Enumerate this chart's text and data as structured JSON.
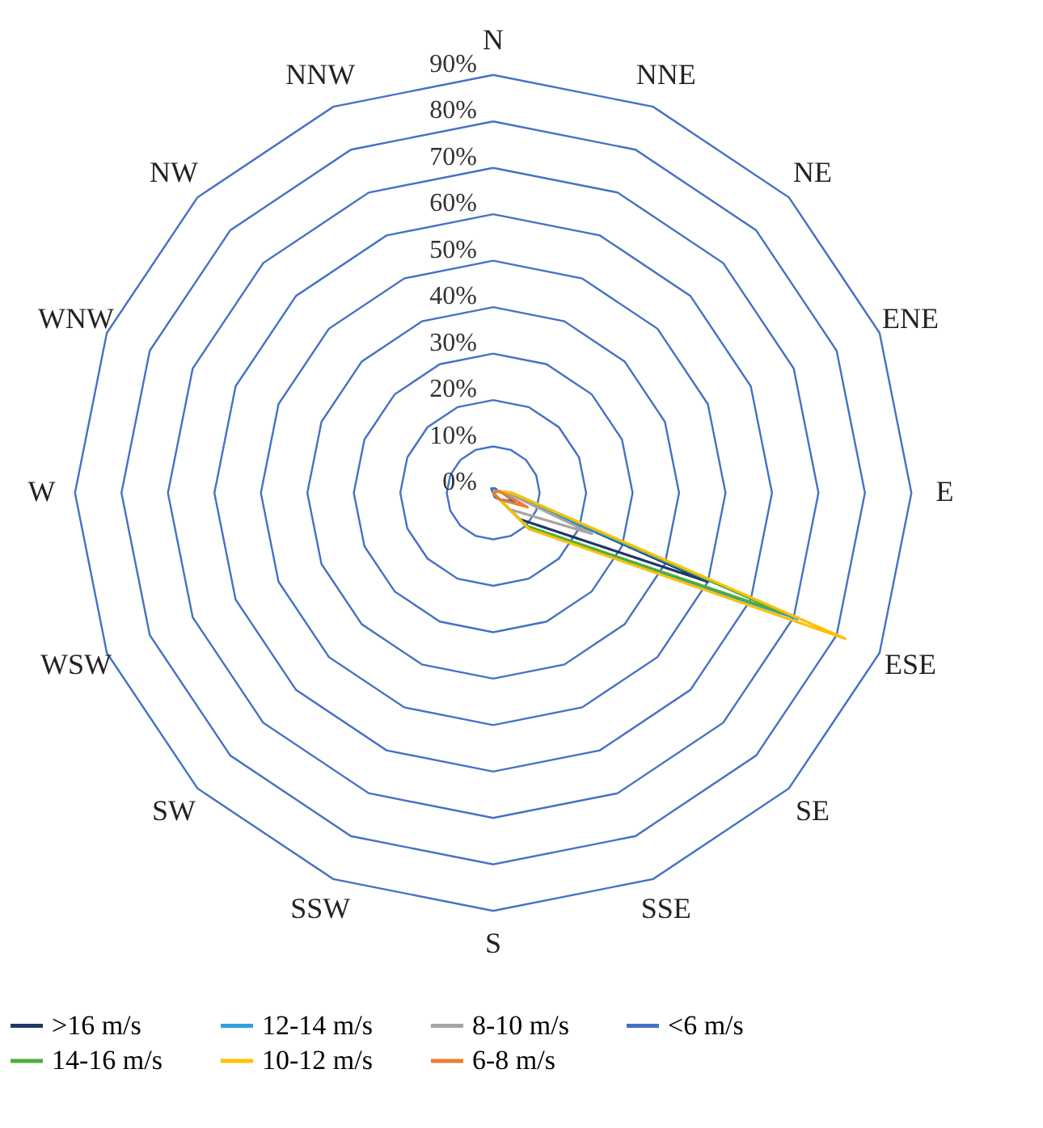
{
  "chart_data": {
    "type": "radar",
    "categories": [
      "N",
      "NNE",
      "NE",
      "ENE",
      "E",
      "ESE",
      "SE",
      "SSE",
      "S",
      "SSW",
      "SW",
      "WSW",
      "W",
      "WNW",
      "NW",
      "NNW"
    ],
    "ylim": [
      0,
      90
    ],
    "yticks": [
      {
        "value": 0,
        "label": "0%"
      },
      {
        "value": 10,
        "label": "10%"
      },
      {
        "value": 20,
        "label": "20%"
      },
      {
        "value": 30,
        "label": "30%"
      },
      {
        "value": 40,
        "label": "40%"
      },
      {
        "value": 50,
        "label": "50%"
      },
      {
        "value": 60,
        "label": "60%"
      },
      {
        "value": 70,
        "label": "70%"
      },
      {
        "value": 80,
        "label": "80%"
      },
      {
        "value": 90,
        "label": "90%"
      }
    ],
    "grid": true,
    "legend": "bottom",
    "marker": "none",
    "line_style": "solid",
    "series": [
      {
        "name": ">16 m/s",
        "color": "#1f3864",
        "values": [
          0,
          0,
          0,
          1,
          3,
          50,
          8,
          0,
          0,
          0,
          0,
          0,
          0,
          0,
          0,
          0
        ]
      },
      {
        "name": "12-14 m/s",
        "color": "#2e9fe0",
        "values": [
          0,
          0,
          0,
          1,
          3,
          71,
          11,
          0,
          0,
          0,
          0,
          0,
          0,
          0,
          0,
          0
        ]
      },
      {
        "name": "8-10 m/s",
        "color": "#a5a5a5",
        "values": [
          0,
          0,
          0,
          1,
          3,
          23,
          5,
          0,
          0,
          0,
          0,
          0,
          0,
          0,
          0,
          0
        ]
      },
      {
        "name": "<6 m/s",
        "color": "#4472c4",
        "values": [
          1,
          1,
          1,
          1,
          2,
          5,
          2,
          1,
          0,
          0,
          0,
          0,
          0,
          0,
          0,
          1
        ]
      },
      {
        "name": "14-16 m/s",
        "color": "#4cae3c",
        "values": [
          0,
          0,
          0,
          1,
          4,
          68,
          10,
          0,
          0,
          0,
          0,
          0,
          0,
          0,
          0,
          0
        ]
      },
      {
        "name": "10-12 m/s",
        "color": "#ffc000",
        "values": [
          0,
          0,
          0,
          1,
          4,
          82,
          11,
          0,
          0,
          0,
          0,
          0,
          0,
          0,
          0,
          0
        ]
      },
      {
        "name": "6-8 m/s",
        "color": "#ed7d31",
        "values": [
          0,
          0,
          0,
          1,
          2,
          8,
          2,
          0,
          0,
          0,
          0,
          0,
          0,
          0,
          0,
          0
        ]
      }
    ]
  }
}
